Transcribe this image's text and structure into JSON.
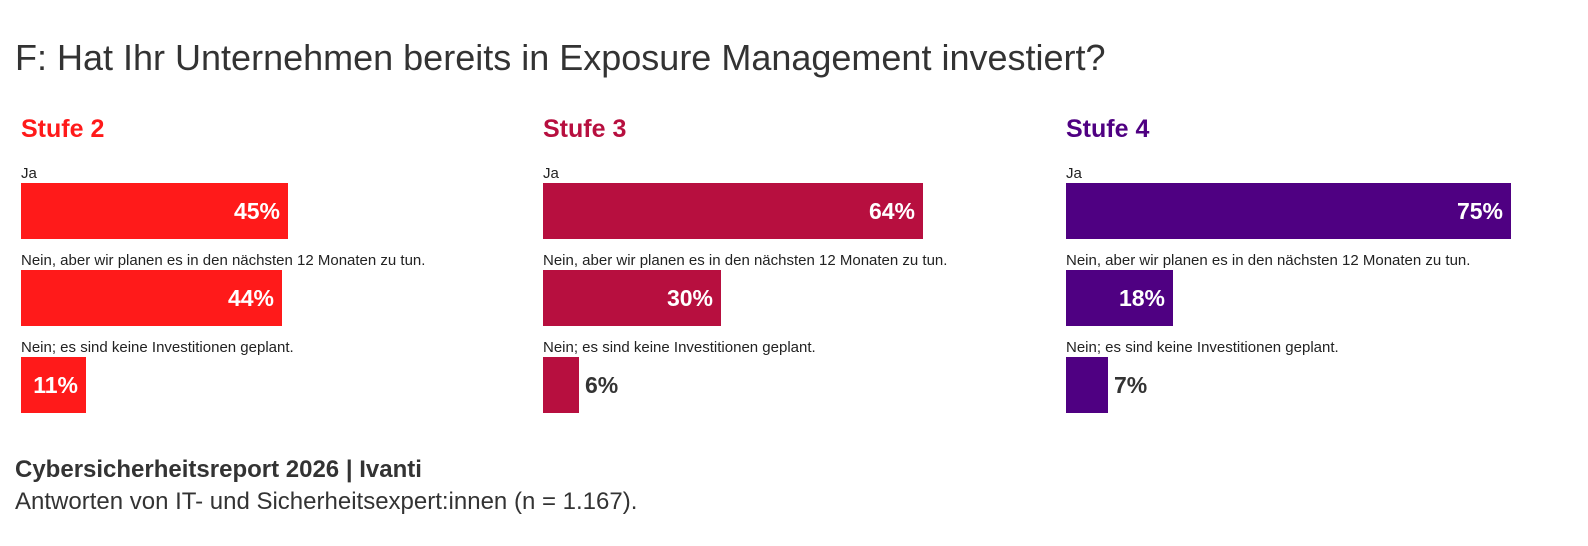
{
  "title": "F: Hat Ihr Unternehmen bereits in Exposure Management investiert?",
  "chart_data": [
    {
      "type": "bar",
      "orientation": "horizontal",
      "title": "Stufe 2",
      "color": "#ff1a1a",
      "categories": [
        "Ja",
        "Nein, aber wir planen es in den nächsten 12 Monaten zu tun.",
        "Nein; es sind keine Investitionen geplant."
      ],
      "values": [
        45,
        44,
        11
      ],
      "value_labels": [
        "45%",
        "44%",
        "11%"
      ],
      "unit": "%",
      "xlim": [
        0,
        100
      ]
    },
    {
      "type": "bar",
      "orientation": "horizontal",
      "title": "Stufe 3",
      "color": "#b70f3f",
      "categories": [
        "Ja",
        "Nein, aber wir planen es in den nächsten 12 Monaten zu tun.",
        "Nein; es sind keine Investitionen geplant."
      ],
      "values": [
        64,
        30,
        6
      ],
      "value_labels": [
        "64%",
        "30%",
        "6%"
      ],
      "unit": "%",
      "xlim": [
        0,
        100
      ]
    },
    {
      "type": "bar",
      "orientation": "horizontal",
      "title": "Stufe 4",
      "color": "#4f0082",
      "categories": [
        "Ja",
        "Nein, aber wir planen es in den nächsten 12 Monaten zu tun.",
        "Nein; es sind keine Investitionen geplant."
      ],
      "values": [
        75,
        18,
        7
      ],
      "value_labels": [
        "75%",
        "18%",
        "7%"
      ],
      "unit": "%",
      "xlim": [
        0,
        100
      ]
    }
  ],
  "footer": {
    "source": "Cybersicherheitsreport 2026 | Ivanti",
    "note": "Antworten von IT- und Sicherheitsexpert:innen (n = 1.167)."
  }
}
